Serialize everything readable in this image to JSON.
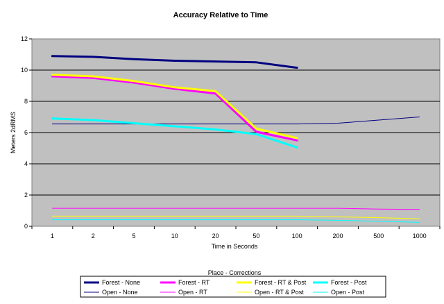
{
  "chart_data": {
    "type": "line",
    "title": "Accuracy Relative to Time",
    "xlabel": "Time in Seconds",
    "ylabel": "Meters 2dRMS",
    "categories": [
      "1",
      "2",
      "5",
      "10",
      "20",
      "50",
      "100",
      "200",
      "500",
      "1000"
    ],
    "ylim": [
      0,
      12
    ],
    "yticks": [
      "0",
      "2",
      "4",
      "6",
      "8",
      "10",
      "12"
    ],
    "grid": true,
    "legend_title": "Place - Corrections",
    "legend_position": "bottom",
    "series": [
      {
        "name": "Forest - None",
        "color": "#000080",
        "weight": "thick",
        "values": [
          10.9,
          10.85,
          10.7,
          10.6,
          10.55,
          10.5,
          10.15,
          null,
          null,
          null
        ]
      },
      {
        "name": "Forest - RT",
        "color": "#ff00ff",
        "weight": "thick",
        "values": [
          9.6,
          9.5,
          9.2,
          8.8,
          8.5,
          6.05,
          5.5,
          null,
          null,
          null
        ]
      },
      {
        "name": "Forest - RT & Post",
        "color": "#ffff00",
        "weight": "thick",
        "values": [
          9.7,
          9.6,
          9.3,
          8.9,
          8.65,
          6.25,
          5.65,
          null,
          null,
          null
        ]
      },
      {
        "name": "Forest - Post",
        "color": "#00ffff",
        "weight": "thick",
        "values": [
          6.9,
          6.8,
          6.6,
          6.4,
          6.2,
          5.9,
          5.05,
          null,
          null,
          null
        ]
      },
      {
        "name": "Open - None",
        "color": "#000080",
        "weight": "thin",
        "values": [
          6.55,
          6.55,
          6.55,
          6.55,
          6.55,
          6.55,
          6.55,
          6.6,
          6.8,
          7.0
        ]
      },
      {
        "name": "Open - RT",
        "color": "#ff00ff",
        "weight": "thin",
        "values": [
          1.15,
          1.15,
          1.15,
          1.15,
          1.15,
          1.15,
          1.15,
          1.15,
          1.1,
          1.08
        ]
      },
      {
        "name": "Open - RT & Post",
        "color": "#ffff00",
        "weight": "thin",
        "values": [
          0.65,
          0.65,
          0.65,
          0.65,
          0.65,
          0.65,
          0.65,
          0.6,
          0.55,
          0.48
        ]
      },
      {
        "name": "Open - Post",
        "color": "#00ffff",
        "weight": "thin",
        "values": [
          0.42,
          0.42,
          0.42,
          0.42,
          0.42,
          0.42,
          0.42,
          0.38,
          0.32,
          0.25
        ]
      }
    ]
  }
}
